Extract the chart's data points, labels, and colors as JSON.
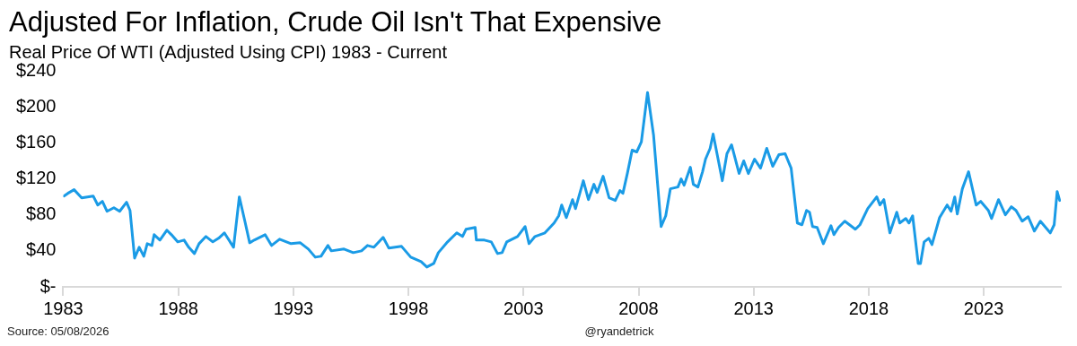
{
  "chart_data": {
    "type": "line",
    "title": "Adjusted For Inflation, Crude Oil Isn't That Expensive",
    "subtitle": "Real Price Of WTI (Adjusted Using CPI) 1983 - Current",
    "annotations": [
      "Source: 05/08/2026",
      "@ryandetrick"
    ],
    "x": [
      1983.03,
      1983.2,
      1983.47,
      1983.8,
      1984.3,
      1984.5,
      1984.7,
      1984.9,
      1985.2,
      1985.45,
      1985.75,
      1985.9,
      1986.1,
      1986.3,
      1986.5,
      1986.65,
      1986.85,
      1986.95,
      1987.2,
      1987.5,
      1987.7,
      1987.97,
      1988.25,
      1988.45,
      1988.7,
      1988.9,
      1989.2,
      1989.5,
      1989.75,
      1990.0,
      1990.4,
      1990.65,
      1990.9,
      1991.1,
      1991.3,
      1991.77,
      1992.05,
      1992.4,
      1992.9,
      1993.3,
      1993.65,
      1993.95,
      1994.2,
      1994.5,
      1994.65,
      1995.2,
      1995.6,
      1995.96,
      1996.22,
      1996.5,
      1996.9,
      1997.15,
      1997.7,
      1998.1,
      1998.55,
      1998.8,
      1999.1,
      1999.3,
      1999.7,
      2000.1,
      2000.35,
      2000.5,
      2000.9,
      2000.95,
      2001.3,
      2001.6,
      2001.87,
      2002.07,
      2002.27,
      2002.74,
      2003.07,
      2003.24,
      2003.5,
      2003.93,
      2004.33,
      2004.53,
      2004.66,
      2004.86,
      2005.13,
      2005.26,
      2005.6,
      2005.82,
      2006.06,
      2006.2,
      2006.46,
      2006.72,
      2006.99,
      2007.19,
      2007.32,
      2007.52,
      2007.72,
      2007.92,
      2008.12,
      2008.39,
      2008.65,
      2008.98,
      2009.18,
      2009.38,
      2009.71,
      2009.85,
      2009.98,
      2010.25,
      2010.38,
      2010.58,
      2010.78,
      2010.91,
      2011.11,
      2011.24,
      2011.44,
      2011.64,
      2011.84,
      2012.04,
      2012.37,
      2012.57,
      2012.77,
      2013.04,
      2013.3,
      2013.57,
      2013.83,
      2014.1,
      2014.37,
      2014.63,
      2014.9,
      2015.1,
      2015.3,
      2015.43,
      2015.56,
      2015.76,
      2016.03,
      2016.36,
      2016.49,
      2016.69,
      2016.96,
      2017.42,
      2017.62,
      2017.96,
      2018.35,
      2018.49,
      2018.66,
      2018.92,
      2019.22,
      2019.35,
      2019.61,
      2019.75,
      2019.91,
      2020.15,
      2020.25,
      2020.41,
      2020.61,
      2020.75,
      2021.08,
      2021.41,
      2021.58,
      2021.74,
      2021.85,
      2022.07,
      2022.34,
      2022.67,
      2022.87,
      2023.2,
      2023.34,
      2023.64,
      2023.94,
      2024.2,
      2024.4,
      2024.67,
      2024.93,
      2025.2,
      2025.46,
      2025.89,
      2026.06,
      2026.19,
      2026.3
    ],
    "series": [
      {
        "color": "#1a9be6",
        "values": [
          101,
          104,
          108,
          99,
          101,
          91,
          95,
          84,
          88,
          84,
          94,
          85,
          32,
          44,
          34,
          48,
          46,
          58,
          52,
          63,
          58,
          50,
          52,
          44,
          37,
          48,
          56,
          50,
          54,
          60,
          44,
          100,
          72,
          49,
          52,
          58,
          46,
          53,
          48,
          49,
          42,
          33,
          34,
          46,
          40,
          42,
          38,
          40,
          46,
          44,
          55,
          43,
          45,
          33,
          28,
          22,
          26,
          38,
          50,
          60,
          56,
          64,
          66,
          52,
          52,
          50,
          37,
          38,
          50,
          56,
          67,
          48,
          56,
          60,
          71,
          79,
          91,
          77,
          97,
          87,
          118,
          97,
          114,
          105,
          123,
          99,
          96,
          107,
          104,
          127,
          152,
          150,
          161,
          216,
          169,
          67,
          79,
          109,
          111,
          120,
          113,
          133,
          114,
          111,
          128,
          142,
          154,
          170,
          144,
          118,
          148,
          158,
          126,
          140,
          126,
          142,
          132,
          154,
          134,
          147,
          148,
          132,
          71,
          69,
          85,
          83,
          67,
          66,
          48,
          68,
          58,
          66,
          73,
          64,
          69,
          87,
          100,
          91,
          97,
          60,
          83,
          71,
          76,
          71,
          79,
          26,
          26,
          50,
          54,
          47,
          77,
          91,
          84,
          100,
          81,
          109,
          128,
          91,
          95,
          85,
          76,
          97,
          80,
          89,
          85,
          73,
          78,
          62,
          73,
          60,
          69,
          106,
          96
        ]
      }
    ],
    "xlim": [
      1983,
      2026.35
    ],
    "xticks": [
      1983,
      1988,
      1993,
      1998,
      2003,
      2008,
      2013,
      2018,
      2023
    ],
    "ylim": [
      0,
      240
    ],
    "yticks": [
      {
        "value": 0,
        "label": "$-"
      },
      {
        "value": 40,
        "label": "$40"
      },
      {
        "value": 80,
        "label": "$80"
      },
      {
        "value": 120,
        "label": "$120"
      },
      {
        "value": 160,
        "label": "$160"
      },
      {
        "value": 200,
        "label": "$200"
      },
      {
        "value": 240,
        "label": "$240"
      }
    ],
    "grid": false,
    "legend": false,
    "marker": "none",
    "line_style": "solid"
  }
}
